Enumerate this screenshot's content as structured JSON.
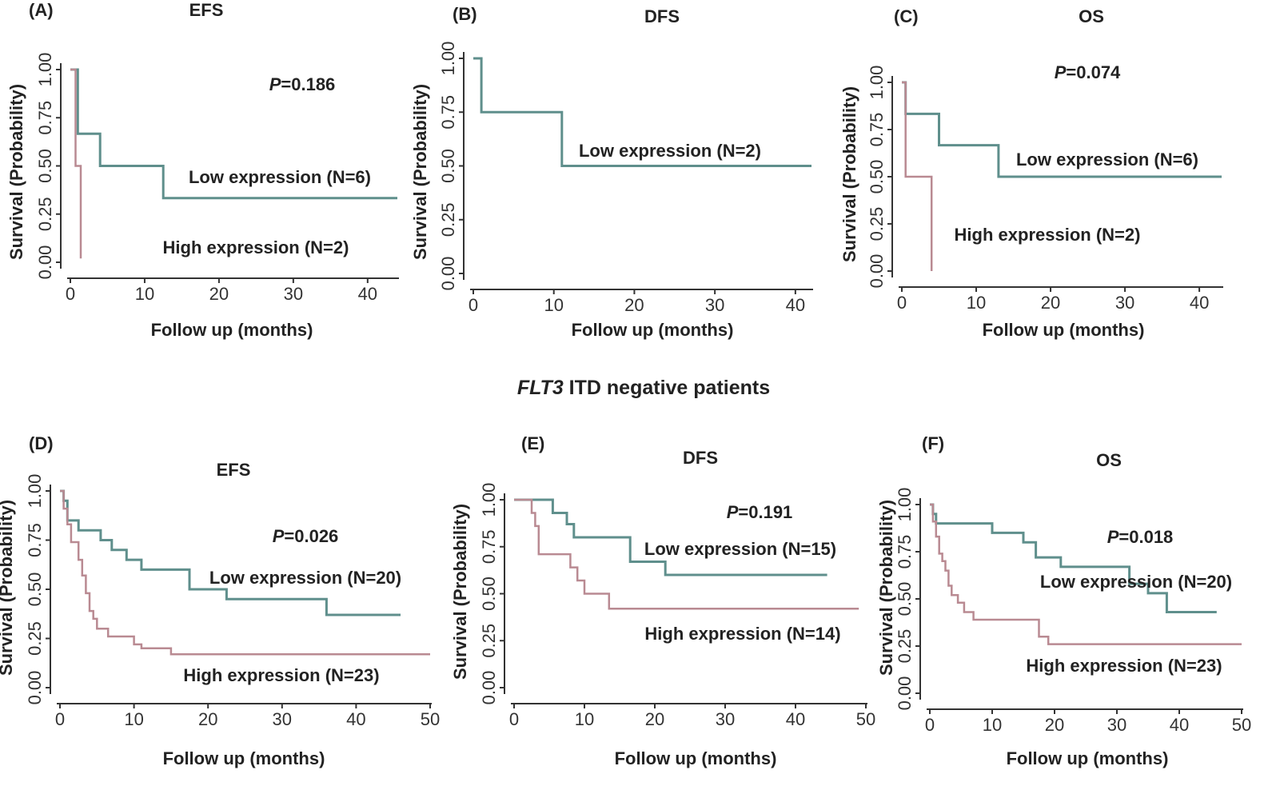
{
  "section_title": {
    "italic": "FLT3",
    "rest": " ITD negative patients"
  },
  "colors": {
    "low": "#5f8f8c",
    "high": "#b98a92",
    "axis": "#333333"
  },
  "chart_data": [
    {
      "id": "A",
      "panel_label": "(A)",
      "title": "EFS",
      "type": "line",
      "p_text": {
        "italic": "P",
        "rest": "=0.186"
      },
      "xlabel": "Follow up (months)",
      "ylabel": "Survival (Probability)",
      "xlim": [
        0,
        44
      ],
      "ylim": [
        0,
        1
      ],
      "xticks": [
        0,
        10,
        20,
        30,
        40
      ],
      "yticks": [
        0,
        0.25,
        0.5,
        0.75,
        1
      ],
      "ytick_labels": [
        "0.00",
        "0.25",
        "0.50",
        "0.75",
        "1.00"
      ],
      "series": [
        {
          "name": "Low expression (N=6)",
          "class": "low",
          "x": [
            0,
            1,
            1,
            4,
            4,
            12.5,
            12.5,
            44
          ],
          "y": [
            1,
            1,
            0.667,
            0.667,
            0.5,
            0.5,
            0.333,
            0.333
          ]
        },
        {
          "name": "High expression (N=2)",
          "class": "high",
          "x": [
            0,
            0.7,
            0.7,
            1.4,
            1.4
          ],
          "y": [
            1,
            1,
            0.5,
            0.5,
            0.02
          ]
        }
      ]
    },
    {
      "id": "B",
      "panel_label": "(B)",
      "title": "DFS",
      "type": "line",
      "p_text": null,
      "xlabel": "Follow up (months)",
      "ylabel": "Survival (Probability)",
      "xlim": [
        0,
        42
      ],
      "ylim": [
        0,
        1
      ],
      "xticks": [
        0,
        10,
        20,
        30,
        40
      ],
      "yticks": [
        0,
        0.25,
        0.5,
        0.75,
        1
      ],
      "ytick_labels": [
        "0.00",
        "0.25",
        "0.50",
        "0.75",
        "1.00"
      ],
      "series": [
        {
          "name": "Low expression (N=2)",
          "class": "low",
          "x": [
            0,
            1,
            1,
            11,
            11,
            42
          ],
          "y": [
            1,
            1,
            0.75,
            0.75,
            0.5,
            0.5
          ]
        }
      ]
    },
    {
      "id": "C",
      "panel_label": "(C)",
      "title": "OS",
      "type": "line",
      "p_text": {
        "italic": "P",
        "rest": "=0.074"
      },
      "xlabel": "Follow up (months)",
      "ylabel": "Survival (Probability)",
      "xlim": [
        0,
        43
      ],
      "ylim": [
        0,
        1
      ],
      "xticks": [
        0,
        10,
        20,
        30,
        40
      ],
      "yticks": [
        0,
        0.25,
        0.5,
        0.75,
        1
      ],
      "ytick_labels": [
        "0.00",
        "0.25",
        "0.50",
        "0.75",
        "1.00"
      ],
      "series": [
        {
          "name": "Low expression (N=6)",
          "class": "low",
          "x": [
            0,
            0.5,
            0.5,
            5,
            5,
            13,
            13,
            43
          ],
          "y": [
            1,
            1,
            0.833,
            0.833,
            0.667,
            0.667,
            0.5,
            0.5
          ]
        },
        {
          "name": "High expression (N=2)",
          "class": "high",
          "x": [
            0,
            0.5,
            0.5,
            4,
            4
          ],
          "y": [
            1,
            1,
            0.5,
            0.5,
            0
          ]
        }
      ]
    },
    {
      "id": "D",
      "panel_label": "(D)",
      "title": "EFS",
      "type": "line",
      "p_text": {
        "italic": "P",
        "rest": "=0.026"
      },
      "xlabel": "Follow up (months)",
      "ylabel": "Survival (Probability)",
      "xlim": [
        0,
        50
      ],
      "ylim": [
        0,
        1
      ],
      "xticks": [
        0,
        10,
        20,
        30,
        40,
        50
      ],
      "yticks": [
        0,
        0.25,
        0.5,
        0.75,
        1
      ],
      "ytick_labels": [
        "0.00",
        "0.25",
        "0.50",
        "0.75",
        "1.00"
      ],
      "series": [
        {
          "name": "Low expression (N=20)",
          "class": "low",
          "x": [
            0,
            0.5,
            0.5,
            1,
            1,
            2.5,
            2.5,
            5.5,
            5.5,
            7,
            7,
            9,
            9,
            11,
            11,
            17.5,
            17.5,
            22.5,
            22.5,
            36,
            36,
            46
          ],
          "y": [
            1,
            1,
            0.95,
            0.95,
            0.85,
            0.85,
            0.8,
            0.8,
            0.75,
            0.75,
            0.7,
            0.7,
            0.65,
            0.65,
            0.6,
            0.6,
            0.5,
            0.5,
            0.45,
            0.45,
            0.37,
            0.37
          ]
        },
        {
          "name": "High expression (N=23)",
          "class": "high",
          "x": [
            0,
            0.5,
            0.5,
            1,
            1,
            1.5,
            1.5,
            2.5,
            2.5,
            3,
            3,
            3.5,
            3.5,
            4,
            4,
            4.5,
            4.5,
            5,
            5,
            6.5,
            6.5,
            10,
            10,
            11,
            11,
            15,
            15,
            50
          ],
          "y": [
            1,
            1,
            0.91,
            0.91,
            0.83,
            0.83,
            0.74,
            0.74,
            0.65,
            0.65,
            0.57,
            0.57,
            0.48,
            0.48,
            0.39,
            0.39,
            0.35,
            0.35,
            0.3,
            0.3,
            0.26,
            0.26,
            0.22,
            0.22,
            0.2,
            0.2,
            0.17,
            0.17
          ]
        }
      ]
    },
    {
      "id": "E",
      "panel_label": "(E)",
      "title": "DFS",
      "type": "line",
      "p_text": {
        "italic": "P",
        "rest": "=0.191"
      },
      "xlabel": "Follow up (months)",
      "ylabel": "Survival (Probability)",
      "xlim": [
        0,
        50
      ],
      "ylim": [
        0,
        1
      ],
      "xticks": [
        0,
        10,
        20,
        30,
        40,
        50
      ],
      "yticks": [
        0,
        0.25,
        0.5,
        0.75,
        1
      ],
      "ytick_labels": [
        "0.00",
        "0.25",
        "0.50",
        "0.75",
        "1.00"
      ],
      "series": [
        {
          "name": "Low expression (N=15)",
          "class": "low",
          "x": [
            0,
            5.5,
            5.5,
            7.5,
            7.5,
            8.5,
            8.5,
            16.5,
            16.5,
            21.5,
            21.5,
            44.5
          ],
          "y": [
            1,
            1,
            0.93,
            0.93,
            0.87,
            0.87,
            0.8,
            0.8,
            0.67,
            0.67,
            0.6,
            0.6
          ]
        },
        {
          "name": "High expression (N=14)",
          "class": "high",
          "x": [
            0,
            2.5,
            2.5,
            3,
            3,
            3.5,
            3.5,
            8,
            8,
            9,
            9,
            10,
            10,
            13.5,
            13.5,
            49
          ],
          "y": [
            1,
            1,
            0.93,
            0.93,
            0.86,
            0.86,
            0.71,
            0.71,
            0.64,
            0.64,
            0.57,
            0.57,
            0.5,
            0.5,
            0.42,
            0.42
          ]
        }
      ]
    },
    {
      "id": "F",
      "panel_label": "(F)",
      "title": "OS",
      "type": "line",
      "p_text": {
        "italic": "P",
        "rest": "=0.018"
      },
      "xlabel": "Follow up (months)",
      "ylabel": "Survival (Probability)",
      "xlim": [
        0,
        50
      ],
      "ylim": [
        0,
        1
      ],
      "xticks": [
        0,
        10,
        20,
        30,
        40,
        50
      ],
      "yticks": [
        0,
        0.25,
        0.5,
        0.75,
        1
      ],
      "ytick_labels": [
        "0.00",
        "0.25",
        "0.50",
        "0.75",
        "1.00"
      ],
      "series": [
        {
          "name": "Low expression (N=20)",
          "class": "low",
          "x": [
            0,
            0.5,
            0.5,
            1,
            1,
            10,
            10,
            15,
            15,
            17,
            17,
            21,
            21,
            32,
            32,
            35,
            35,
            38,
            38,
            46
          ],
          "y": [
            1,
            1,
            0.95,
            0.95,
            0.9,
            0.9,
            0.85,
            0.85,
            0.8,
            0.8,
            0.72,
            0.72,
            0.67,
            0.67,
            0.58,
            0.58,
            0.53,
            0.53,
            0.43,
            0.43
          ]
        },
        {
          "name": "High expression (N=23)",
          "class": "high",
          "x": [
            0,
            0.5,
            0.5,
            1,
            1,
            1.5,
            1.5,
            2,
            2,
            2.5,
            2.5,
            3,
            3,
            3.5,
            3.5,
            4.5,
            4.5,
            5.5,
            5.5,
            7,
            7,
            17.5,
            17.5,
            19,
            19,
            50
          ],
          "y": [
            1,
            1,
            0.91,
            0.91,
            0.83,
            0.83,
            0.74,
            0.74,
            0.7,
            0.7,
            0.65,
            0.65,
            0.57,
            0.57,
            0.52,
            0.52,
            0.48,
            0.48,
            0.43,
            0.43,
            0.39,
            0.39,
            0.3,
            0.3,
            0.26,
            0.26
          ]
        }
      ]
    }
  ]
}
